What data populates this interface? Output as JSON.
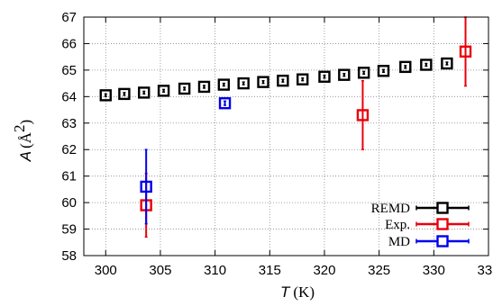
{
  "chart_data": {
    "type": "scatter",
    "xlabel": {
      "symbol": "T",
      "unit": "(K)"
    },
    "ylabel": {
      "symbol": "A",
      "unit_open": "(Å",
      "unit_sup": "2",
      "unit_close": ")"
    },
    "xlim": [
      298,
      335
    ],
    "ylim": [
      58,
      67
    ],
    "xticks": [
      300,
      305,
      310,
      315,
      320,
      325,
      330,
      335
    ],
    "yticks": [
      58,
      59,
      60,
      61,
      62,
      63,
      64,
      65,
      66,
      67
    ],
    "grid": true,
    "legend_position": "bottom-right",
    "series": [
      {
        "name": "REMD",
        "color": "#000000",
        "points": [
          {
            "x": 300.0,
            "y": 64.05,
            "err": 0.05
          },
          {
            "x": 301.7,
            "y": 64.1,
            "err": 0.05
          },
          {
            "x": 303.5,
            "y": 64.15,
            "err": 0.05
          },
          {
            "x": 305.3,
            "y": 64.22,
            "err": 0.05
          },
          {
            "x": 307.2,
            "y": 64.3,
            "err": 0.05
          },
          {
            "x": 309.0,
            "y": 64.37,
            "err": 0.05
          },
          {
            "x": 310.8,
            "y": 64.45,
            "err": 0.05
          },
          {
            "x": 312.6,
            "y": 64.5,
            "err": 0.05
          },
          {
            "x": 314.4,
            "y": 64.55,
            "err": 0.05
          },
          {
            "x": 316.2,
            "y": 64.6,
            "err": 0.05
          },
          {
            "x": 318.0,
            "y": 64.65,
            "err": 0.05
          },
          {
            "x": 320.0,
            "y": 64.75,
            "err": 0.05
          },
          {
            "x": 321.8,
            "y": 64.82,
            "err": 0.05
          },
          {
            "x": 323.6,
            "y": 64.9,
            "err": 0.05
          },
          {
            "x": 325.4,
            "y": 64.97,
            "err": 0.05
          },
          {
            "x": 327.4,
            "y": 65.12,
            "err": 0.05
          },
          {
            "x": 329.3,
            "y": 65.2,
            "err": 0.05
          },
          {
            "x": 331.2,
            "y": 65.25,
            "err": 0.05
          }
        ]
      },
      {
        "name": "Exp.",
        "color": "#e8000b",
        "points": [
          {
            "x": 303.7,
            "y": 59.9,
            "err": 1.2
          },
          {
            "x": 323.5,
            "y": 63.3,
            "err": 1.3
          },
          {
            "x": 332.9,
            "y": 65.7,
            "err": 1.3
          }
        ]
      },
      {
        "name": "MD",
        "color": "#0000ee",
        "points": [
          {
            "x": 303.7,
            "y": 60.6,
            "err": 1.4
          },
          {
            "x": 310.9,
            "y": 63.75,
            "err": 0.08
          }
        ]
      }
    ]
  }
}
